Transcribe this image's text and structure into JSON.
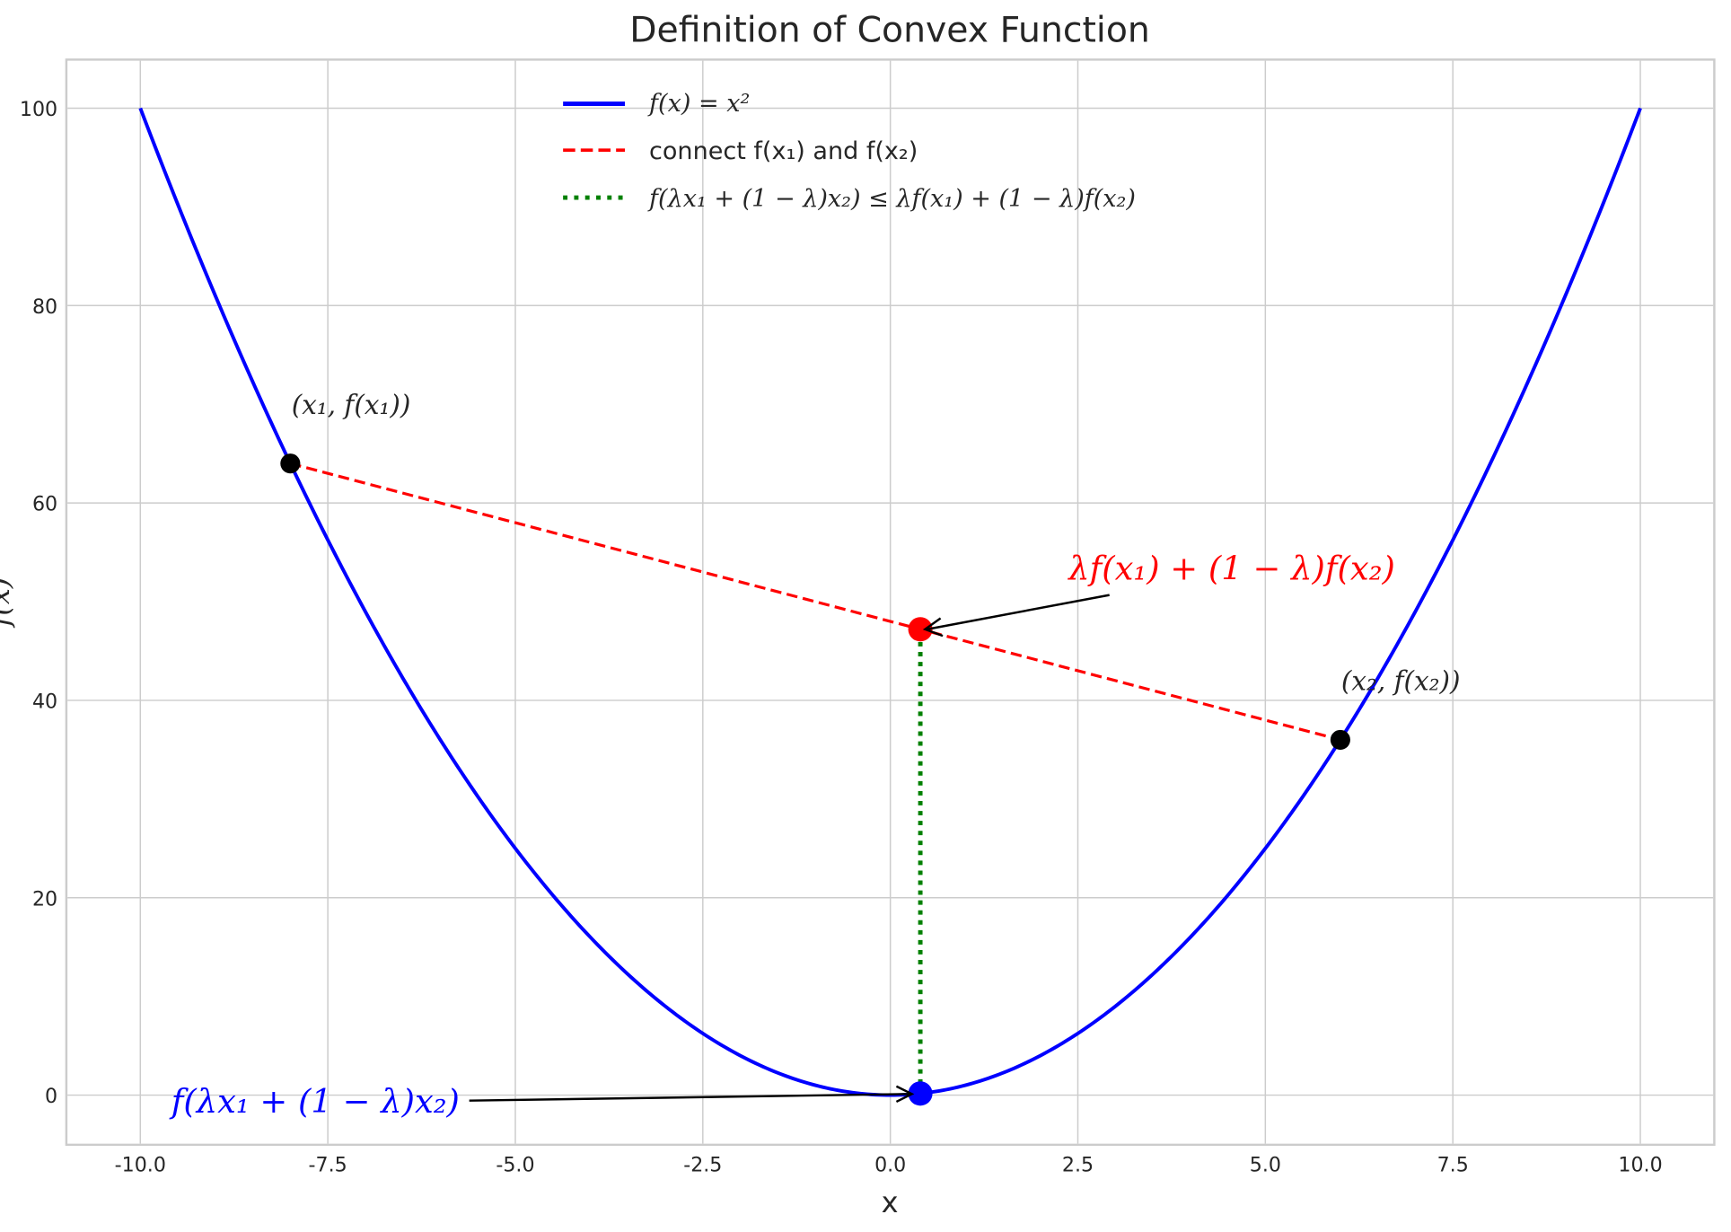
{
  "chart_data": {
    "type": "line",
    "title": "Definition of Convex Function",
    "xlabel": "x",
    "ylabel": "f(x)",
    "xlim": [
      -11,
      11
    ],
    "ylim": [
      -5,
      105
    ],
    "grid": true,
    "legend_position": "top-center",
    "xticks": [
      "-10.0",
      "-7.5",
      "-5.0",
      "-2.5",
      "0.0",
      "2.5",
      "5.0",
      "7.5",
      "10.0"
    ],
    "xtick_values": [
      -10,
      -7.5,
      -5,
      -2.5,
      0,
      2.5,
      5,
      7.5,
      10
    ],
    "yticks": [
      "0",
      "20",
      "40",
      "60",
      "80",
      "100"
    ],
    "ytick_values": [
      0,
      20,
      40,
      60,
      80,
      100
    ],
    "series": [
      {
        "name": "f(x) = x²",
        "kind": "curve",
        "function": "x^2",
        "x_range": [
          -10,
          10
        ],
        "color": "#0000ff",
        "style": "solid"
      },
      {
        "name": "connect f(x₁) and f(x₂)",
        "kind": "segment",
        "points": [
          [
            -8,
            64
          ],
          [
            6,
            36
          ]
        ],
        "color": "#ff0000",
        "style": "dashed"
      },
      {
        "name": "f(λx₁ + (1 − λ)x₂) ≤ λf(x₁) + (1 − λ)f(x₂)",
        "kind": "segment",
        "points": [
          [
            0.4,
            0.16
          ],
          [
            0.4,
            47.2
          ]
        ],
        "color": "#008000",
        "style": "dotted"
      }
    ],
    "points": [
      {
        "x": -8,
        "y": 64,
        "color": "#000000",
        "label": "(x₁, f(x₁))"
      },
      {
        "x": 6,
        "y": 36,
        "color": "#000000",
        "label": "(x₂, f(x₂))"
      },
      {
        "x": 0.4,
        "y": 47.2,
        "color": "#ff0000"
      },
      {
        "x": 0.4,
        "y": 0.16,
        "color": "#0000ff"
      }
    ],
    "annotations": [
      {
        "text": "λf(x₁) + (1 − λ)f(x₂)",
        "color": "#ff0000",
        "target": [
          0.4,
          47.2
        ]
      },
      {
        "text": "f(λx₁ + (1 − λ)x₂)",
        "color": "#0000ff",
        "target": [
          0.4,
          0.16
        ]
      }
    ]
  }
}
